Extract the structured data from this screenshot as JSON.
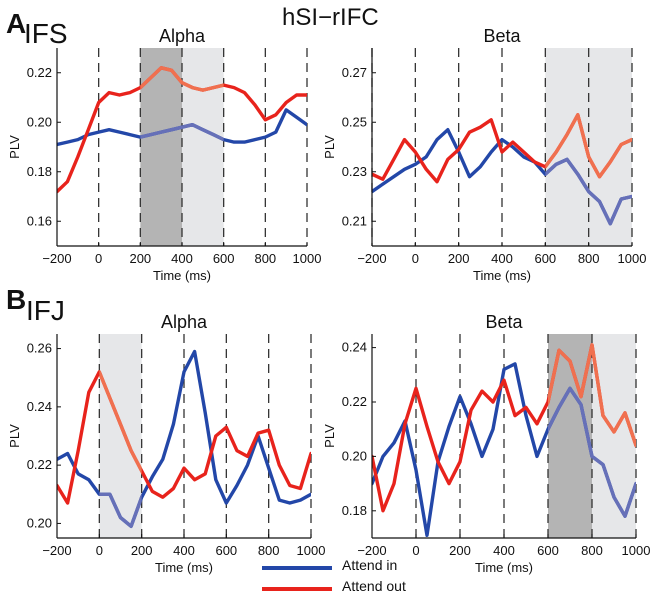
{
  "figure": {
    "title": "hSI−rIFC",
    "panel_labels": [
      "A",
      "B"
    ],
    "row_labels": [
      "IFS",
      "IFJ"
    ]
  },
  "legend": {
    "items": [
      {
        "name": "Attend in",
        "color": "#2347a8"
      },
      {
        "name": "Attend out",
        "color": "#e8231c"
      }
    ]
  },
  "colors": {
    "attend_in": "#2347a8",
    "attend_out": "#e8231c",
    "attend_in_highlight": "#6670b8",
    "attend_out_highlight": "#f0704f",
    "shade_dark": "#b4b4b4",
    "shade_light": "#e6e7e9"
  },
  "chart_data": [
    {
      "type": "line",
      "title": "Alpha",
      "xlabel": "Time (ms)",
      "ylabel": "PLV",
      "xlim": [
        -200,
        1000
      ],
      "ylim": [
        0.15,
        0.23
      ],
      "xticks": [
        -200,
        0,
        200,
        400,
        600,
        800,
        1000
      ],
      "yticks": [
        0.16,
        0.18,
        0.2,
        0.22
      ],
      "ytick_labels": [
        "0.16",
        "0.18",
        "0.20",
        "0.22"
      ],
      "vlines": [
        0,
        200,
        400,
        600,
        800,
        1000
      ],
      "shaded": [
        {
          "x": [
            200,
            400
          ],
          "tone": "dark"
        },
        {
          "x": [
            400,
            600
          ],
          "tone": "light"
        }
      ],
      "series": [
        {
          "name": "Attend in",
          "x": [
            -200,
            -150,
            -100,
            -50,
            0,
            50,
            100,
            150,
            200,
            250,
            300,
            350,
            400,
            450,
            500,
            550,
            600,
            650,
            700,
            750,
            800,
            850,
            900,
            950,
            1000
          ],
          "values": [
            0.191,
            0.192,
            0.193,
            0.195,
            0.196,
            0.197,
            0.196,
            0.195,
            0.194,
            0.195,
            0.196,
            0.197,
            0.198,
            0.199,
            0.197,
            0.195,
            0.193,
            0.192,
            0.192,
            0.193,
            0.194,
            0.196,
            0.205,
            0.202,
            0.199
          ]
        },
        {
          "name": "Attend out",
          "x": [
            -200,
            -150,
            -100,
            -50,
            0,
            50,
            100,
            150,
            200,
            250,
            300,
            350,
            400,
            450,
            500,
            550,
            600,
            650,
            700,
            750,
            800,
            850,
            900,
            950,
            1000
          ],
          "values": [
            0.172,
            0.176,
            0.186,
            0.197,
            0.208,
            0.212,
            0.211,
            0.212,
            0.214,
            0.218,
            0.222,
            0.221,
            0.216,
            0.214,
            0.213,
            0.214,
            0.215,
            0.214,
            0.212,
            0.207,
            0.201,
            0.203,
            0.208,
            0.211,
            0.211
          ]
        }
      ]
    },
    {
      "type": "line",
      "title": "Beta",
      "xlabel": "Time (ms)",
      "ylabel": "PLV",
      "xlim": [
        -200,
        1000
      ],
      "ylim": [
        0.2,
        0.28
      ],
      "xticks": [
        -200,
        0,
        200,
        400,
        600,
        800,
        1000
      ],
      "yticks": [
        0.21,
        0.23,
        0.25,
        0.27
      ],
      "ytick_labels": [
        "0.21",
        "0.23",
        "0.25",
        "0.27"
      ],
      "vlines": [
        -200,
        0,
        200,
        400,
        600,
        800,
        1000
      ],
      "shaded": [
        {
          "x": [
            600,
            1000
          ],
          "tone": "light"
        }
      ],
      "series": [
        {
          "name": "Attend in",
          "x": [
            -200,
            -150,
            -100,
            -50,
            0,
            50,
            100,
            150,
            200,
            250,
            300,
            350,
            400,
            450,
            500,
            550,
            600,
            650,
            700,
            750,
            800,
            850,
            900,
            950,
            1000
          ],
          "values": [
            0.222,
            0.225,
            0.228,
            0.231,
            0.233,
            0.236,
            0.243,
            0.247,
            0.238,
            0.228,
            0.232,
            0.238,
            0.243,
            0.24,
            0.236,
            0.234,
            0.229,
            0.233,
            0.235,
            0.229,
            0.222,
            0.218,
            0.209,
            0.219,
            0.22
          ]
        },
        {
          "name": "Attend out",
          "x": [
            -200,
            -150,
            -100,
            -50,
            0,
            50,
            100,
            150,
            200,
            250,
            300,
            350,
            400,
            450,
            500,
            550,
            600,
            650,
            700,
            750,
            800,
            850,
            900,
            950,
            1000
          ],
          "values": [
            0.229,
            0.227,
            0.235,
            0.243,
            0.238,
            0.231,
            0.226,
            0.235,
            0.239,
            0.246,
            0.248,
            0.251,
            0.238,
            0.242,
            0.238,
            0.234,
            0.232,
            0.238,
            0.245,
            0.253,
            0.236,
            0.228,
            0.234,
            0.241,
            0.243
          ]
        }
      ]
    },
    {
      "type": "line",
      "title": "Alpha",
      "xlabel": "Time (ms)",
      "ylabel": "PLV",
      "xlim": [
        -200,
        1000
      ],
      "ylim": [
        0.195,
        0.265
      ],
      "xticks": [
        -200,
        0,
        200,
        400,
        600,
        800,
        1000
      ],
      "yticks": [
        0.2,
        0.22,
        0.24,
        0.26
      ],
      "ytick_labels": [
        "0.20",
        "0.22",
        "0.24",
        "0.26"
      ],
      "vlines": [
        0,
        200,
        400,
        600,
        800,
        1000
      ],
      "shaded": [
        {
          "x": [
            0,
            200
          ],
          "tone": "light"
        }
      ],
      "series": [
        {
          "name": "Attend in",
          "x": [
            -200,
            -150,
            -100,
            -50,
            0,
            50,
            100,
            150,
            200,
            250,
            300,
            350,
            400,
            450,
            500,
            550,
            600,
            650,
            700,
            750,
            800,
            850,
            900,
            950,
            1000
          ],
          "values": [
            0.222,
            0.224,
            0.217,
            0.215,
            0.21,
            0.21,
            0.202,
            0.199,
            0.209,
            0.216,
            0.222,
            0.234,
            0.252,
            0.259,
            0.238,
            0.215,
            0.207,
            0.213,
            0.22,
            0.23,
            0.219,
            0.208,
            0.207,
            0.208,
            0.21
          ]
        },
        {
          "name": "Attend out",
          "x": [
            -200,
            -150,
            -100,
            -50,
            0,
            50,
            100,
            150,
            200,
            250,
            300,
            350,
            400,
            450,
            500,
            550,
            600,
            650,
            700,
            750,
            800,
            850,
            900,
            950,
            1000
          ],
          "values": [
            0.213,
            0.207,
            0.225,
            0.245,
            0.252,
            0.243,
            0.234,
            0.225,
            0.218,
            0.211,
            0.209,
            0.212,
            0.219,
            0.215,
            0.217,
            0.23,
            0.233,
            0.225,
            0.223,
            0.231,
            0.232,
            0.22,
            0.213,
            0.212,
            0.224
          ]
        }
      ]
    },
    {
      "type": "line",
      "title": "Beta",
      "xlabel": "Time (ms)",
      "ylabel": "PLV",
      "xlim": [
        -200,
        1000
      ],
      "ylim": [
        0.17,
        0.245
      ],
      "xticks": [
        -200,
        0,
        200,
        400,
        600,
        800,
        1000
      ],
      "yticks": [
        0.18,
        0.2,
        0.22,
        0.24
      ],
      "ytick_labels": [
        "0.18",
        "0.20",
        "0.22",
        "0.24"
      ],
      "vlines": [
        0,
        200,
        400,
        600,
        800,
        1000
      ],
      "shaded": [
        {
          "x": [
            600,
            800
          ],
          "tone": "dark"
        },
        {
          "x": [
            800,
            1000
          ],
          "tone": "light"
        }
      ],
      "series": [
        {
          "name": "Attend in",
          "x": [
            -200,
            -150,
            -100,
            -50,
            0,
            50,
            100,
            150,
            200,
            250,
            300,
            350,
            400,
            450,
            500,
            550,
            600,
            650,
            700,
            750,
            800,
            850,
            900,
            950,
            1000
          ],
          "values": [
            0.19,
            0.2,
            0.205,
            0.213,
            0.195,
            0.171,
            0.198,
            0.211,
            0.222,
            0.212,
            0.2,
            0.21,
            0.232,
            0.234,
            0.215,
            0.2,
            0.21,
            0.218,
            0.225,
            0.219,
            0.2,
            0.197,
            0.185,
            0.178,
            0.19
          ]
        },
        {
          "name": "Attend out",
          "x": [
            -200,
            -150,
            -100,
            -50,
            0,
            50,
            100,
            150,
            200,
            250,
            300,
            350,
            400,
            450,
            500,
            550,
            600,
            650,
            700,
            750,
            800,
            850,
            900,
            950,
            1000
          ],
          "values": [
            0.2,
            0.18,
            0.19,
            0.212,
            0.225,
            0.211,
            0.198,
            0.19,
            0.198,
            0.217,
            0.224,
            0.22,
            0.228,
            0.215,
            0.218,
            0.212,
            0.22,
            0.239,
            0.235,
            0.222,
            0.241,
            0.215,
            0.209,
            0.216,
            0.204
          ]
        }
      ]
    }
  ]
}
